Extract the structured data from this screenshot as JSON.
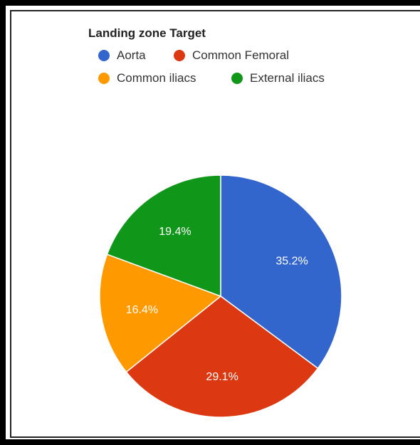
{
  "chart_data": {
    "type": "pie",
    "title": "Landing zone Target",
    "categories": [
      "Aorta",
      "Common Femoral",
      "Common iliacs",
      "External iliacs"
    ],
    "values": [
      35.2,
      29.1,
      16.4,
      19.4
    ],
    "value_labels": [
      "35.2%",
      "29.1%",
      "16.4%",
      "19.4%"
    ],
    "colors": [
      "#3366cc",
      "#dc3912",
      "#ff9900",
      "#109618"
    ],
    "legend_position": "top"
  }
}
